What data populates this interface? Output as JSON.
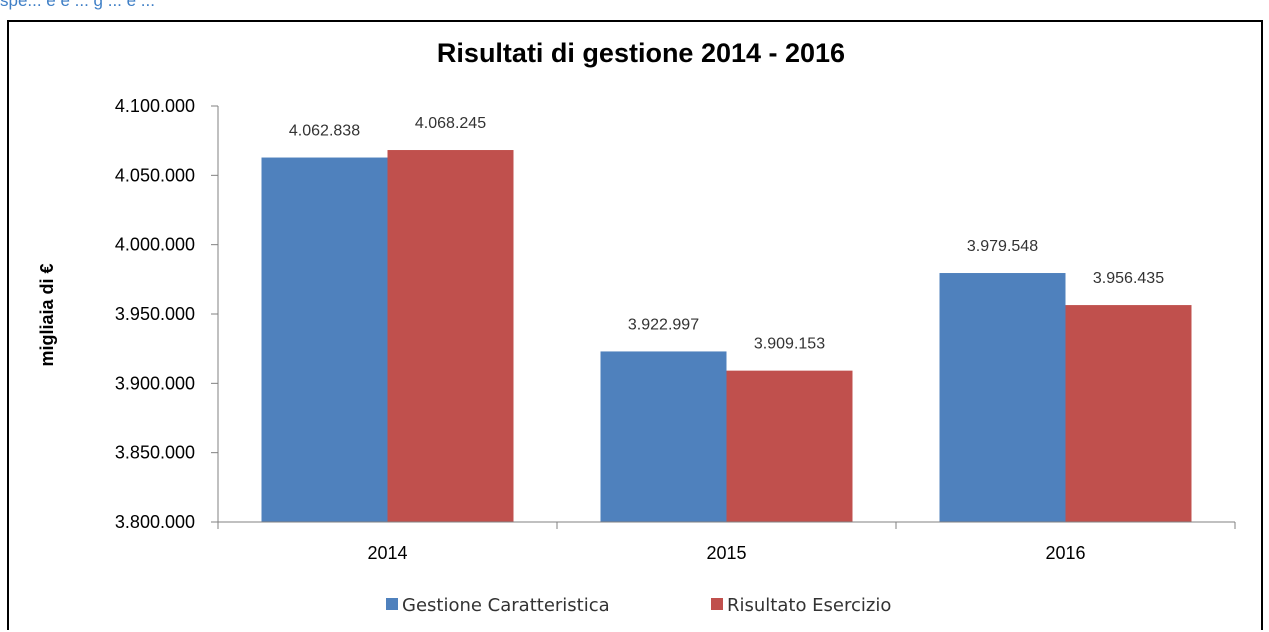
{
  "header_fragment": "spe... e e ... g ... e ...",
  "colors": {
    "series1": "#4f81bd",
    "series2": "#c0504d",
    "axis": "#808080"
  },
  "chart_data": {
    "type": "bar",
    "title": "Risultati di gestione 2014 - 2016",
    "xlabel": "",
    "ylabel": "migliaia di €",
    "categories": [
      "2014",
      "2015",
      "2016"
    ],
    "ylim": [
      3800000,
      4100000
    ],
    "yticks": [
      3800000,
      3850000,
      3900000,
      3950000,
      4000000,
      4050000,
      4100000
    ],
    "ytick_labels": [
      "3.800.000",
      "3.850.000",
      "3.900.000",
      "3.950.000",
      "4.000.000",
      "4.050.000",
      "4.100.000"
    ],
    "grid": false,
    "legend_position": "bottom",
    "series": [
      {
        "name": "Gestione Caratteristica",
        "values": [
          4062838,
          3922997,
          3979548
        ],
        "labels": [
          "4.062.838",
          "3.922.997",
          "3.979.548"
        ]
      },
      {
        "name": "Risultato Esercizio",
        "values": [
          4068245,
          3909153,
          3956435
        ],
        "labels": [
          "4.068.245",
          "3.909.153",
          "3.956.435"
        ]
      }
    ]
  }
}
